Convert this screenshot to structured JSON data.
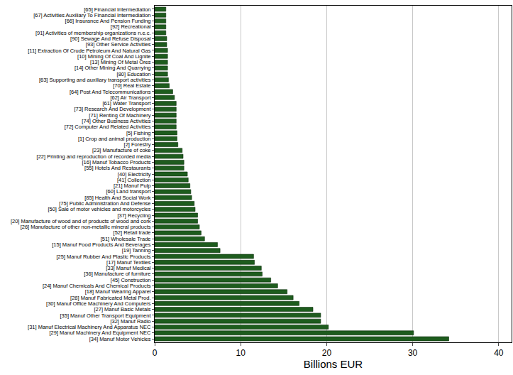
{
  "chart_data": {
    "type": "bar",
    "orientation": "horizontal",
    "x_label": "Billions EUR",
    "color": "#1e5c1e",
    "grid": true,
    "xlim": [
      0,
      41.5
    ],
    "xticks": [
      0,
      10,
      20,
      30,
      40
    ],
    "categories": [
      "[65] Financial Intermediation",
      "[67] Activities Auxiliary To Financial Intermediation",
      "[66] Insurance And Pension Funding",
      "[92] Recreational",
      "[91] Activities of membership organizations n.e.c.",
      "[90] Sewage And Refuse Disposal",
      "[93] Other Service Activities",
      "[11] Extraction Of Crude Petroleum And Natural Gas",
      "[10] Mining Of Coal And Lignite",
      "[13] Mining Of Metal Ores",
      "[14] Other Mining And Quarrying",
      "[80] Education",
      "[63] Supporting and auxiliary transport activities",
      "[70] Real Estate",
      "[64] Post And Telecommunications",
      "[62] Air Transport",
      "[61] Water Transport",
      "[73] Research And Development",
      "[71] Renting Of Machinery",
      "[74] Other Business Activities",
      "[72] Computer And Related Activities",
      "[5] Fishing",
      "[1] Crop and animal production",
      "[2] Forestry",
      "[23] Manufacture of coke",
      "[22] Printing and reproduction of recorded media",
      "[16] Manuf Tobacco Products",
      "[55] Hotels And Restaurants",
      "[40] Electricity",
      "[41] Collection",
      "[21] Manuf Pulp",
      "[60] Land transport",
      "[85] Health And Social Work",
      "[75] Public Administration And Defense",
      "[50] Sale of motor vehicles and motorcycles",
      "[37] Recycling",
      "[20] Manufacture of wood and of products of wood and cork",
      "[26] Manufacture of other non-metallic mineral products",
      "[52] Retail trade",
      "[51] Wholesale Trade",
      "[15] Manuf Food Products And Beverages",
      "[19] Tanning",
      "[25] Manuf Rubber And Plastic Products",
      "[17] Manuf Textiles",
      "[33] Manuf Medical",
      "[36] Manufacture of furniture",
      "[45] Construction",
      "[24] Manuf Chemicals And Chemical Products",
      "[18] Manuf Wearing Apparel",
      "[28] Manuf Fabricated Metal Prod.",
      "[30] Manuf Office Machinery And Computers",
      "[27] Manuf Basic Metals",
      "[35] Manuf Other Transport Equipment",
      "[32] Manuf Radio",
      "[31] Manuf Electrical Machinery And Apparatus NEC",
      "[29] Manuf Machinery And Equipment NEC",
      "[34] Manuf Motor Vehicles"
    ],
    "values": [
      1.3,
      1.3,
      1.3,
      1.3,
      1.3,
      1.4,
      1.4,
      1.5,
      1.5,
      1.5,
      1.5,
      1.5,
      1.6,
      1.7,
      2.1,
      2.3,
      2.5,
      2.5,
      2.5,
      2.5,
      2.5,
      2.6,
      2.6,
      2.7,
      3.2,
      3.3,
      3.4,
      3.4,
      3.8,
      3.9,
      4.1,
      4.2,
      4.3,
      4.6,
      4.7,
      5.0,
      5.0,
      5.2,
      5.4,
      5.8,
      7.3,
      7.6,
      11.5,
      11.6,
      12.4,
      12.5,
      13.5,
      14.3,
      15.4,
      16.1,
      16.8,
      18.4,
      19.3,
      19.3,
      20.2,
      30.1,
      34.2
    ]
  }
}
